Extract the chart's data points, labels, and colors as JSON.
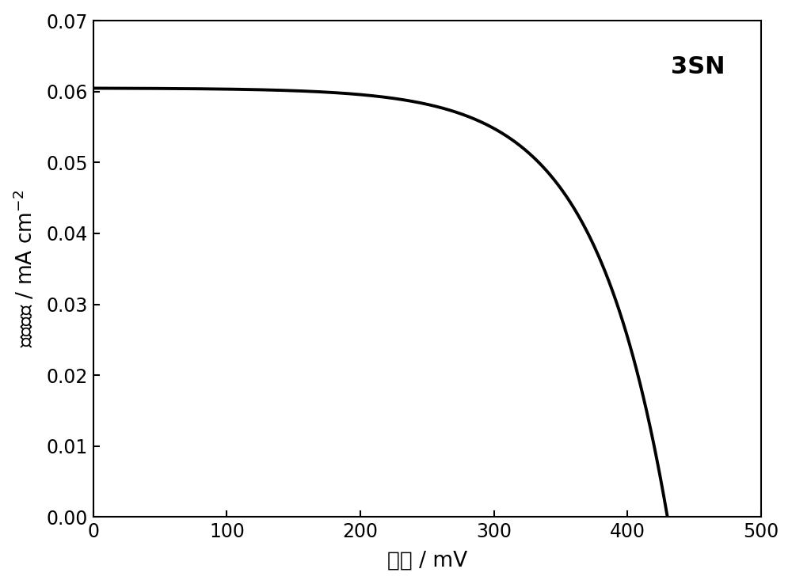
{
  "label": "3SN",
  "xlabel_parts": [
    "电压 / ",
    "mV"
  ],
  "ylabel_parts": [
    "电流密度 / mA cm",
    "-2"
  ],
  "xlim": [
    0,
    500
  ],
  "ylim": [
    0,
    0.07
  ],
  "xticks": [
    0,
    100,
    200,
    300,
    400,
    500
  ],
  "yticks": [
    0.0,
    0.01,
    0.02,
    0.03,
    0.04,
    0.05,
    0.06,
    0.07
  ],
  "line_color": "#000000",
  "line_width": 2.8,
  "background_color": "#ffffff",
  "Jsc": 0.0605,
  "Voc": 430,
  "n_Vt": 55,
  "label_fontsize": 19,
  "tick_fontsize": 17,
  "annotation_fontsize": 22
}
